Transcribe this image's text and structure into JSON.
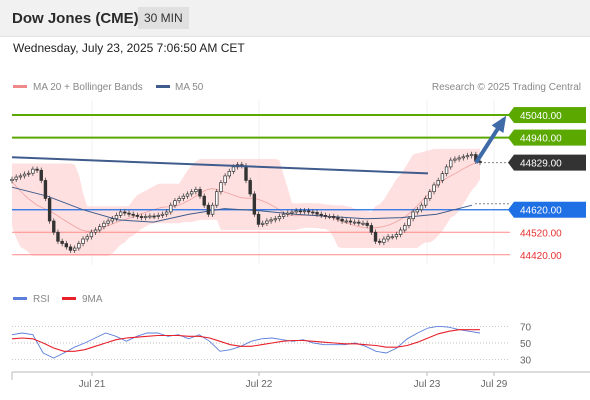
{
  "header": {
    "title": "Dow Jones (CME)",
    "timeframe": "30 MIN",
    "date": "Wednesday, July 23, 2025 7:06:50 AM CET"
  },
  "legend": {
    "bollinger": "MA 20 + Bollinger Bands",
    "ma50": "MA 50",
    "credit": "Research © 2025 Trading Central"
  },
  "rsi_legend": {
    "rsi": "RSI",
    "ma9": "9MA"
  },
  "colors": {
    "resistance": "#5aa800",
    "current": "#333333",
    "pivot": "#1f6fe5",
    "support": "#ff8a8a",
    "ma50": "#3f5c8c",
    "rsi": "#5b7fdb",
    "rsi_ma": "#e8202a",
    "candle": "#333333",
    "bands": "#ffd6d6"
  },
  "chart_data": [
    {
      "type": "line",
      "title": "",
      "x_ticks": [
        "Jul 21",
        "Jul 22",
        "Jul 23",
        "Jul 29"
      ],
      "y_range": [
        44400,
        45070
      ],
      "levels": [
        {
          "label": "45040.00",
          "value": 45040,
          "kind": "resistance"
        },
        {
          "label": "44940.00",
          "value": 44940,
          "kind": "resistance"
        },
        {
          "label": "44829.00",
          "value": 44829,
          "kind": "current"
        },
        {
          "label": "44620.00",
          "value": 44620,
          "kind": "pivot"
        },
        {
          "label": "44520.00",
          "value": 44520,
          "kind": "support"
        },
        {
          "label": "44420.00",
          "value": 44420,
          "kind": "support"
        }
      ],
      "trendline": {
        "from": 44853,
        "to": 44781
      },
      "projection": {
        "from": 44829,
        "to": 45040
      },
      "series": [
        {
          "name": "Price",
          "values": [
            44755,
            44765,
            44770,
            44778,
            44782,
            44800,
            44795,
            44750,
            44670,
            44570,
            44520,
            44480,
            44470,
            44455,
            44440,
            44450,
            44470,
            44490,
            44500,
            44520,
            44530,
            44545,
            44560,
            44570,
            44580,
            44595,
            44610,
            44605,
            44600,
            44595,
            44590,
            44585,
            44590,
            44592,
            44590,
            44595,
            44600,
            44610,
            44640,
            44660,
            44670,
            44680,
            44690,
            44700,
            44710,
            44680,
            44640,
            44600,
            44640,
            44700,
            44740,
            44770,
            44790,
            44810,
            44820,
            44815,
            44750,
            44690,
            44600,
            44555,
            44560,
            44570,
            44575,
            44580,
            44590,
            44600,
            44605,
            44610,
            44615,
            44612,
            44615,
            44610,
            44608,
            44600,
            44595,
            44590,
            44590,
            44585,
            44578,
            44570,
            44570,
            44565,
            44565,
            44560,
            44560,
            44550,
            44520,
            44480,
            44475,
            44490,
            44500,
            44500,
            44510,
            44530,
            44550,
            44580,
            44610,
            44620,
            44640,
            44670,
            44700,
            44730,
            44750,
            44780,
            44810,
            44840,
            44845,
            44850,
            44855,
            44860,
            44865,
            44835,
            44830
          ]
        },
        {
          "name": "MA 50",
          "values": [
            44720,
            44680,
            44620,
            44575,
            44565,
            44600,
            44625,
            44615,
            44600,
            44590,
            44580,
            44585,
            44600,
            44640
          ]
        }
      ]
    },
    {
      "type": "line",
      "title": "",
      "y_ticks": [
        70,
        50,
        30
      ],
      "series": [
        {
          "name": "RSI",
          "values": [
            60,
            62,
            60,
            38,
            32,
            38,
            45,
            50,
            56,
            62,
            58,
            52,
            58,
            62,
            62,
            58,
            60,
            55,
            60,
            52,
            40,
            42,
            46,
            52,
            55,
            56,
            54,
            52,
            54,
            50,
            48,
            48,
            48,
            50,
            46,
            40,
            38,
            44,
            55,
            62,
            68,
            70,
            69,
            66,
            64,
            62
          ]
        },
        {
          "name": "9MA",
          "values": [
            55,
            56,
            55,
            50,
            44,
            40,
            40,
            42,
            46,
            50,
            54,
            56,
            57,
            58,
            59,
            59,
            59,
            58,
            58,
            56,
            52,
            48,
            46,
            46,
            48,
            50,
            52,
            53,
            53,
            52,
            51,
            50,
            49,
            49,
            48,
            47,
            45,
            45,
            47,
            51,
            56,
            61,
            64,
            66,
            66,
            66
          ]
        }
      ]
    }
  ]
}
